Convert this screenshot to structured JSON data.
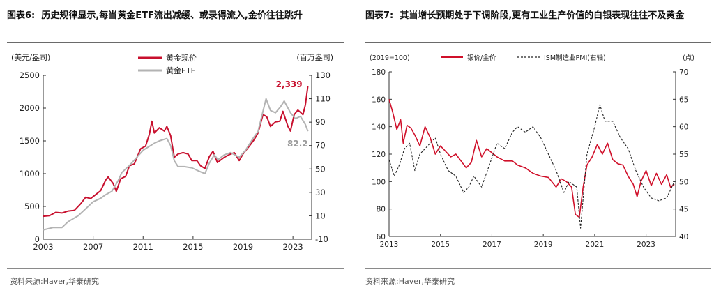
{
  "charts": [
    {
      "figure_label": "图表6:",
      "title": "历史规律显示,每当黄金ETF流出减缓、或录得流入,金价往往跳升",
      "source": "资料来源:Haver,华泰研究",
      "left_unit": "(美元/盎司)",
      "right_unit": "(百万盎司)",
      "colors": {
        "gold": "#c8102e",
        "etf": "#b3b3b3"
      }
    },
    {
      "figure_label": "图表7:",
      "title": "其当增长预期处于下调阶段,更有工业生产价值的白银表现往往不及黄金",
      "source": "资料来源:Haver,华泰研究",
      "left_unit": "(2019=100)",
      "right_unit": "(点)",
      "colors": {
        "silver": "#d0102a",
        "pmi": "#222222"
      }
    }
  ],
  "chart_data": [
    {
      "type": "line",
      "xlabel": "",
      "ylabel": "(美元/盎司)",
      "y2label": "(百万盎司)",
      "x_ticks": [
        "2003",
        "2007",
        "2011",
        "2015",
        "2019",
        "2023"
      ],
      "xlim": [
        2003,
        2024.5
      ],
      "ylim": [
        0,
        2500
      ],
      "y_ticks": [
        "0",
        "500",
        "1000",
        "1500",
        "2000",
        "2500"
      ],
      "y2lim": [
        -10,
        130
      ],
      "y2_ticks": [
        "-10",
        "10",
        "30",
        "50",
        "70",
        "90",
        "110",
        "130"
      ],
      "legend_position": "top-center",
      "annotations": [
        {
          "text": "2,339",
          "series": "黄金现价",
          "x": 2024.2,
          "y": 2339
        },
        {
          "text": "82.2",
          "series": "黄金ETF",
          "x": 2024.2,
          "y": 82.2
        }
      ],
      "series": [
        {
          "name": "黄金现价",
          "axis": "left",
          "x": [
            2003.0,
            2003.5,
            2004.0,
            2004.5,
            2005.0,
            2005.5,
            2006.0,
            2006.4,
            2006.8,
            2007.2,
            2007.6,
            2008.0,
            2008.2,
            2008.6,
            2008.85,
            2009.2,
            2009.6,
            2009.9,
            2010.3,
            2010.8,
            2011.2,
            2011.5,
            2011.7,
            2011.9,
            2012.3,
            2012.7,
            2012.9,
            2013.2,
            2013.5,
            2013.8,
            2014.2,
            2014.6,
            2014.9,
            2015.3,
            2015.6,
            2015.95,
            2016.3,
            2016.6,
            2016.95,
            2017.5,
            2017.9,
            2018.3,
            2018.7,
            2019.0,
            2019.5,
            2019.9,
            2020.2,
            2020.6,
            2020.9,
            2021.2,
            2021.6,
            2021.95,
            2022.2,
            2022.6,
            2022.8,
            2023.1,
            2023.4,
            2023.8,
            2024.0,
            2024.2
          ],
          "values": [
            350,
            360,
            410,
            400,
            430,
            440,
            540,
            640,
            620,
            680,
            740,
            900,
            950,
            850,
            730,
            920,
            960,
            1120,
            1150,
            1380,
            1420,
            1600,
            1800,
            1620,
            1700,
            1650,
            1720,
            1580,
            1250,
            1300,
            1320,
            1300,
            1200,
            1200,
            1120,
            1080,
            1260,
            1340,
            1170,
            1250,
            1290,
            1320,
            1200,
            1300,
            1420,
            1520,
            1620,
            1900,
            1870,
            1720,
            1790,
            1800,
            1950,
            1720,
            1650,
            1900,
            1970,
            1900,
            2050,
            2339
          ]
        },
        {
          "name": "黄金ETF",
          "axis": "right",
          "x": [
            2003.0,
            2003.8,
            2004.5,
            2005.0,
            2005.8,
            2006.5,
            2007.0,
            2007.6,
            2008.0,
            2008.5,
            2009.0,
            2009.3,
            2009.9,
            2010.5,
            2011.0,
            2011.6,
            2011.9,
            2012.3,
            2012.9,
            2013.2,
            2013.5,
            2013.8,
            2014.3,
            2014.9,
            2015.5,
            2015.95,
            2016.3,
            2016.7,
            2017.0,
            2017.5,
            2018.0,
            2018.7,
            2019.2,
            2019.8,
            2020.2,
            2020.5,
            2020.85,
            2021.2,
            2021.6,
            2022.0,
            2022.3,
            2022.8,
            2023.2,
            2023.6,
            2024.0,
            2024.2
          ],
          "values": [
            -2,
            0,
            0,
            5,
            10,
            17,
            22,
            25,
            28,
            31,
            40,
            47,
            53,
            60,
            66,
            70,
            72,
            74,
            76,
            70,
            57,
            52,
            52,
            51,
            48,
            46,
            55,
            62,
            58,
            62,
            64,
            60,
            66,
            76,
            82,
            95,
            110,
            100,
            98,
            103,
            108,
            98,
            93,
            95,
            88,
            82.2
          ]
        }
      ]
    },
    {
      "type": "line",
      "xlabel": "",
      "ylabel": "(2019=100)",
      "y2label": "(点)",
      "x_ticks": [
        "2013",
        "2015",
        "2017",
        "2019",
        "2021",
        "2023"
      ],
      "xlim": [
        2013,
        2024.15
      ],
      "ylim": [
        60,
        180
      ],
      "y_ticks": [
        "60",
        "80",
        "100",
        "120",
        "140",
        "160",
        "180"
      ],
      "y2lim": [
        40,
        70
      ],
      "y2_ticks": [
        "40",
        "45",
        "50",
        "55",
        "60",
        "65",
        "70"
      ],
      "legend_position": "top-center",
      "series": [
        {
          "name": "银价/金价",
          "axis": "left",
          "x": [
            2013.0,
            2013.15,
            2013.3,
            2013.45,
            2013.55,
            2013.7,
            2013.85,
            2014.0,
            2014.2,
            2014.4,
            2014.6,
            2014.8,
            2015.0,
            2015.2,
            2015.4,
            2015.6,
            2015.8,
            2016.0,
            2016.2,
            2016.4,
            2016.6,
            2016.8,
            2017.0,
            2017.2,
            2017.5,
            2017.8,
            2018.0,
            2018.3,
            2018.6,
            2018.9,
            2019.2,
            2019.5,
            2019.7,
            2019.9,
            2020.1,
            2020.25,
            2020.4,
            2020.55,
            2020.7,
            2020.9,
            2021.1,
            2021.3,
            2021.5,
            2021.7,
            2021.9,
            2022.1,
            2022.3,
            2022.5,
            2022.65,
            2022.8,
            2023.0,
            2023.2,
            2023.4,
            2023.6,
            2023.8,
            2023.95,
            2024.1
          ],
          "values": [
            160,
            150,
            138,
            145,
            128,
            141,
            139,
            134,
            126,
            140,
            132,
            120,
            126,
            122,
            118,
            120,
            115,
            110,
            114,
            130,
            118,
            124,
            121,
            118,
            115,
            115,
            112,
            110,
            106,
            104,
            103,
            96,
            102,
            100,
            96,
            76,
            74,
            96,
            112,
            118,
            127,
            120,
            128,
            116,
            113,
            112,
            104,
            98,
            89,
            100,
            108,
            97,
            106,
            98,
            105,
            96,
            98
          ]
        },
        {
          "name": "ISM制造业PMI(右轴)",
          "axis": "right",
          "x": [
            2013.0,
            2013.2,
            2013.4,
            2013.6,
            2013.8,
            2014.0,
            2014.2,
            2014.4,
            2014.6,
            2014.8,
            2015.0,
            2015.3,
            2015.6,
            2015.9,
            2016.1,
            2016.3,
            2016.6,
            2016.9,
            2017.2,
            2017.5,
            2017.8,
            2018.0,
            2018.3,
            2018.6,
            2018.9,
            2019.2,
            2019.5,
            2019.8,
            2020.0,
            2020.3,
            2020.45,
            2020.7,
            2021.0,
            2021.2,
            2021.4,
            2021.7,
            2022.0,
            2022.3,
            2022.6,
            2022.9,
            2023.2,
            2023.5,
            2023.8,
            2024.0,
            2024.1
          ],
          "values": [
            54,
            51,
            53,
            56,
            57,
            52,
            55,
            56,
            57,
            58,
            55,
            52,
            51,
            48,
            49,
            51,
            49,
            53,
            57,
            56,
            59,
            60,
            59,
            60,
            58,
            55,
            52,
            48,
            50,
            49,
            41.5,
            55,
            60,
            64,
            61,
            61,
            58,
            56,
            52,
            49,
            47,
            46.5,
            47,
            49,
            50
          ]
        }
      ]
    }
  ]
}
